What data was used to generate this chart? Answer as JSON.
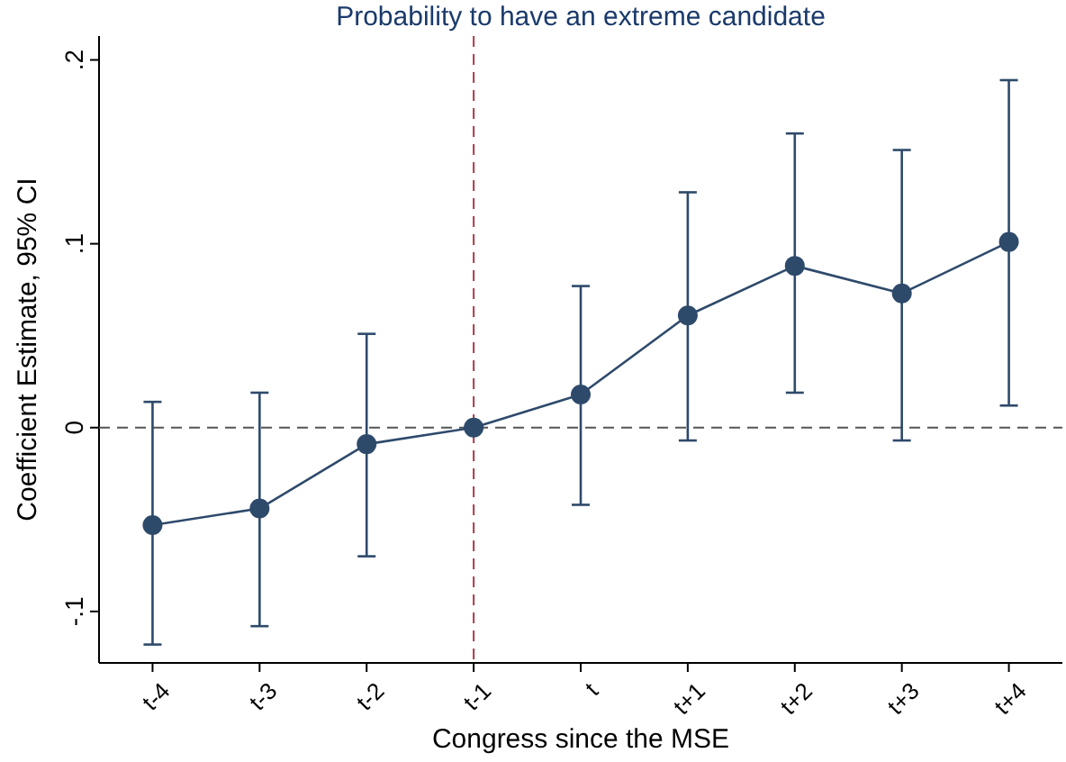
{
  "chart_data": {
    "type": "line",
    "title": "Probability to have an extreme candidate",
    "xlabel": "Congress since the MSE",
    "ylabel": "Coefficient Estimate, 95% CI",
    "categories": [
      "t-4",
      "t-3",
      "t-2",
      "t-1",
      "t",
      "t+1",
      "t+2",
      "t+3",
      "t+4"
    ],
    "series": [
      {
        "color": "#2e4a6b",
        "values": [
          -0.053,
          -0.044,
          -0.009,
          0,
          0.018,
          0.061,
          0.088,
          0.073,
          0.101
        ],
        "errors": [
          [
            -0.118,
            0.014
          ],
          [
            -0.108,
            0.019
          ],
          [
            -0.07,
            0.051
          ],
          null,
          [
            -0.042,
            0.077
          ],
          [
            -0.007,
            0.128
          ],
          [
            0.019,
            0.16
          ],
          [
            -0.007,
            0.151
          ],
          [
            0.012,
            0.189
          ]
        ]
      }
    ],
    "ylim": [
      -0.128,
      0.213
    ],
    "yticks": [
      {
        "value": -0.1,
        "label": "-.1"
      },
      {
        "value": 0,
        "label": "0"
      },
      {
        "value": 0.1,
        "label": ".1"
      },
      {
        "value": 0.2,
        "label": ".2"
      }
    ],
    "marker": "circle",
    "line_style": "solid",
    "grid": false,
    "ref_lines": [
      {
        "axis": "y",
        "value": 0,
        "color": "#555555",
        "line_style": "dashed"
      },
      {
        "axis": "x",
        "value": "t-1",
        "color": "#b03a48",
        "line_style": "dashed"
      }
    ]
  }
}
